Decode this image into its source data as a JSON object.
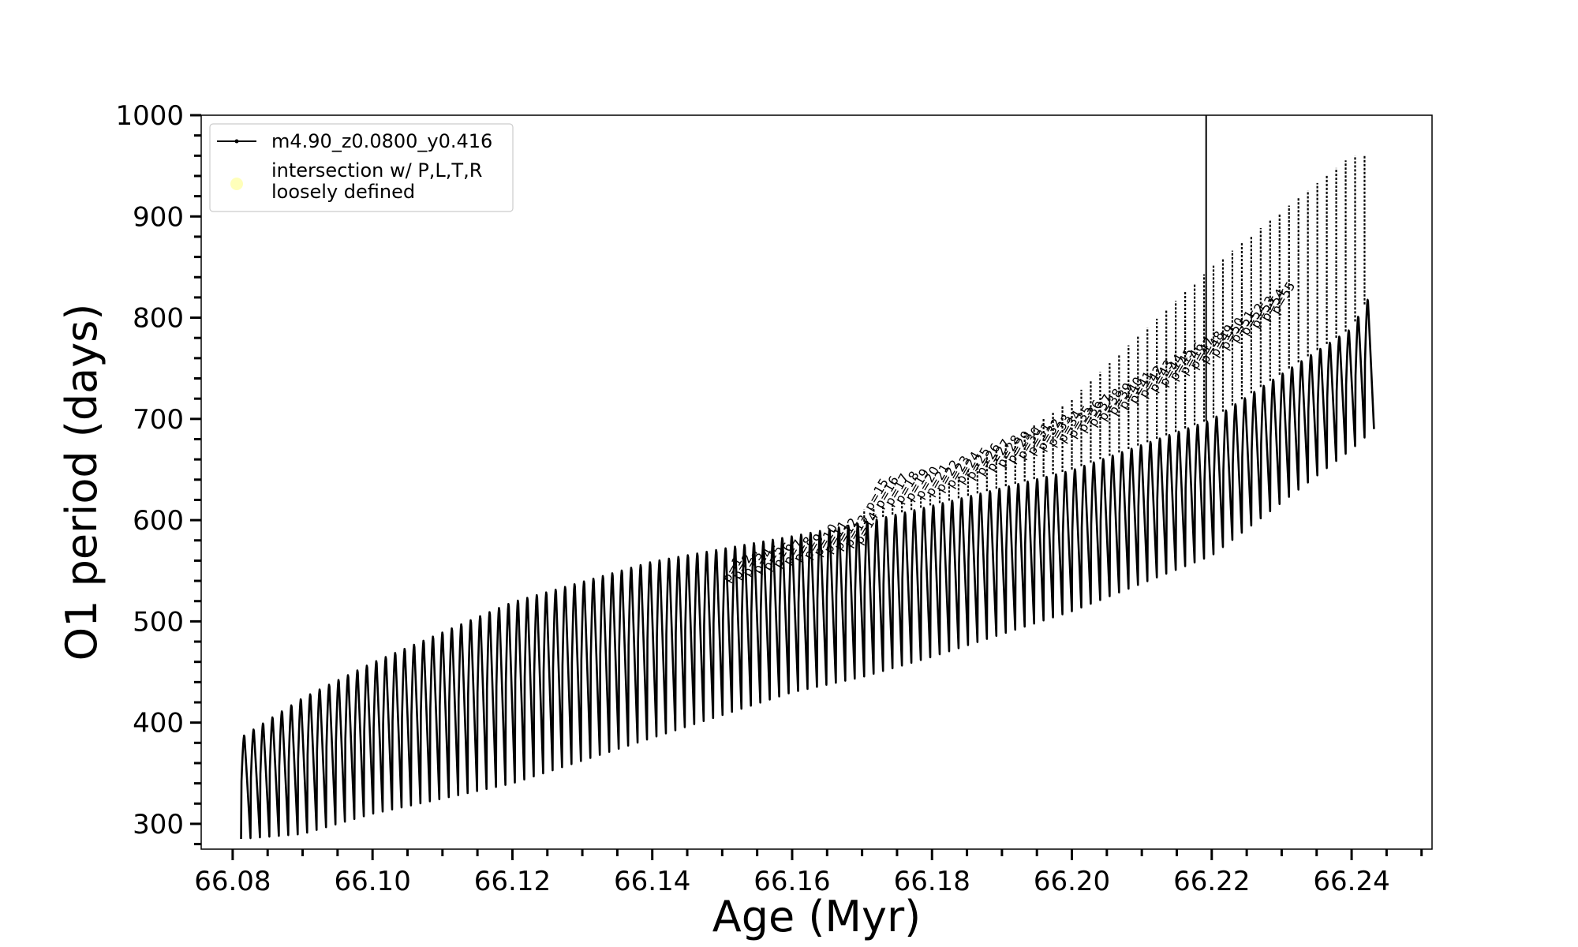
{
  "chart_data": {
    "type": "line",
    "title": "",
    "xlabel": "Age (Myr)",
    "ylabel": "O1 period (days)",
    "xlim": [
      66.0755,
      66.2515
    ],
    "ylim": [
      275,
      1000
    ],
    "x_ticks": [
      "66.08",
      "66.10",
      "66.12",
      "66.14",
      "66.16",
      "66.18",
      "66.20",
      "66.22",
      "66.24"
    ],
    "y_ticks": [
      "300",
      "400",
      "500",
      "600",
      "700",
      "800",
      "900",
      "1000"
    ],
    "grid": false,
    "legend": {
      "placement": "top-left",
      "entries": [
        {
          "label": "m4.90_z0.0800_y0.416",
          "marker": "line-dot",
          "color": "#000000"
        },
        {
          "label_lines": [
            "intersection w/ P,L,T,R",
            "loosely defined"
          ],
          "marker": "circle",
          "color": "#ffffb3"
        }
      ]
    },
    "series": [
      {
        "name": "m4.90_z0.0800_y0.416",
        "color": "#000000",
        "x_range": [
          66.0812,
          66.2432
        ],
        "pulse_count": 120,
        "envelope": {
          "x": [
            66.081,
            66.09,
            66.1,
            66.12,
            66.14,
            66.16,
            66.17,
            66.18,
            66.2,
            66.22,
            66.24,
            66.2432
          ],
          "upper": [
            385,
            425,
            460,
            520,
            560,
            585,
            598,
            615,
            650,
            700,
            790,
            830
          ],
          "lower": [
            285,
            290,
            310,
            340,
            385,
            430,
            445,
            465,
            510,
            565,
            670,
            690
          ]
        },
        "spike_envelope": {
          "x": [
            66.17,
            66.18,
            66.2,
            66.22,
            66.24
          ],
          "max": [
            610,
            625,
            720,
            850,
            960
          ]
        },
        "vertical_line_x": 66.2192
      }
    ],
    "annotations": [
      "p=1",
      "p=2",
      "p=3",
      "p=4",
      "p=5",
      "p=6",
      "p=7",
      "p=8",
      "p=9",
      "p=10",
      "p=11",
      "p=12",
      "p=13",
      "p=14",
      "p=15",
      "p=16",
      "p=17",
      "p=18",
      "p=19",
      "p=20",
      "p=21",
      "p=22",
      "p=23",
      "p=24",
      "p=25",
      "p=26",
      "p=27",
      "p=28",
      "p=29",
      "p=30",
      "p=31",
      "p=32",
      "p=33",
      "p=34",
      "p=35",
      "p=36",
      "p=37",
      "p=38",
      "p=39",
      "p=40",
      "p=41",
      "p=42",
      "p=43",
      "p=44",
      "p=45",
      "p=46",
      "p=47",
      "p=48",
      "p=49",
      "p=50",
      "p=51",
      "p=52",
      "p=53",
      "p=54",
      "p=55"
    ]
  }
}
